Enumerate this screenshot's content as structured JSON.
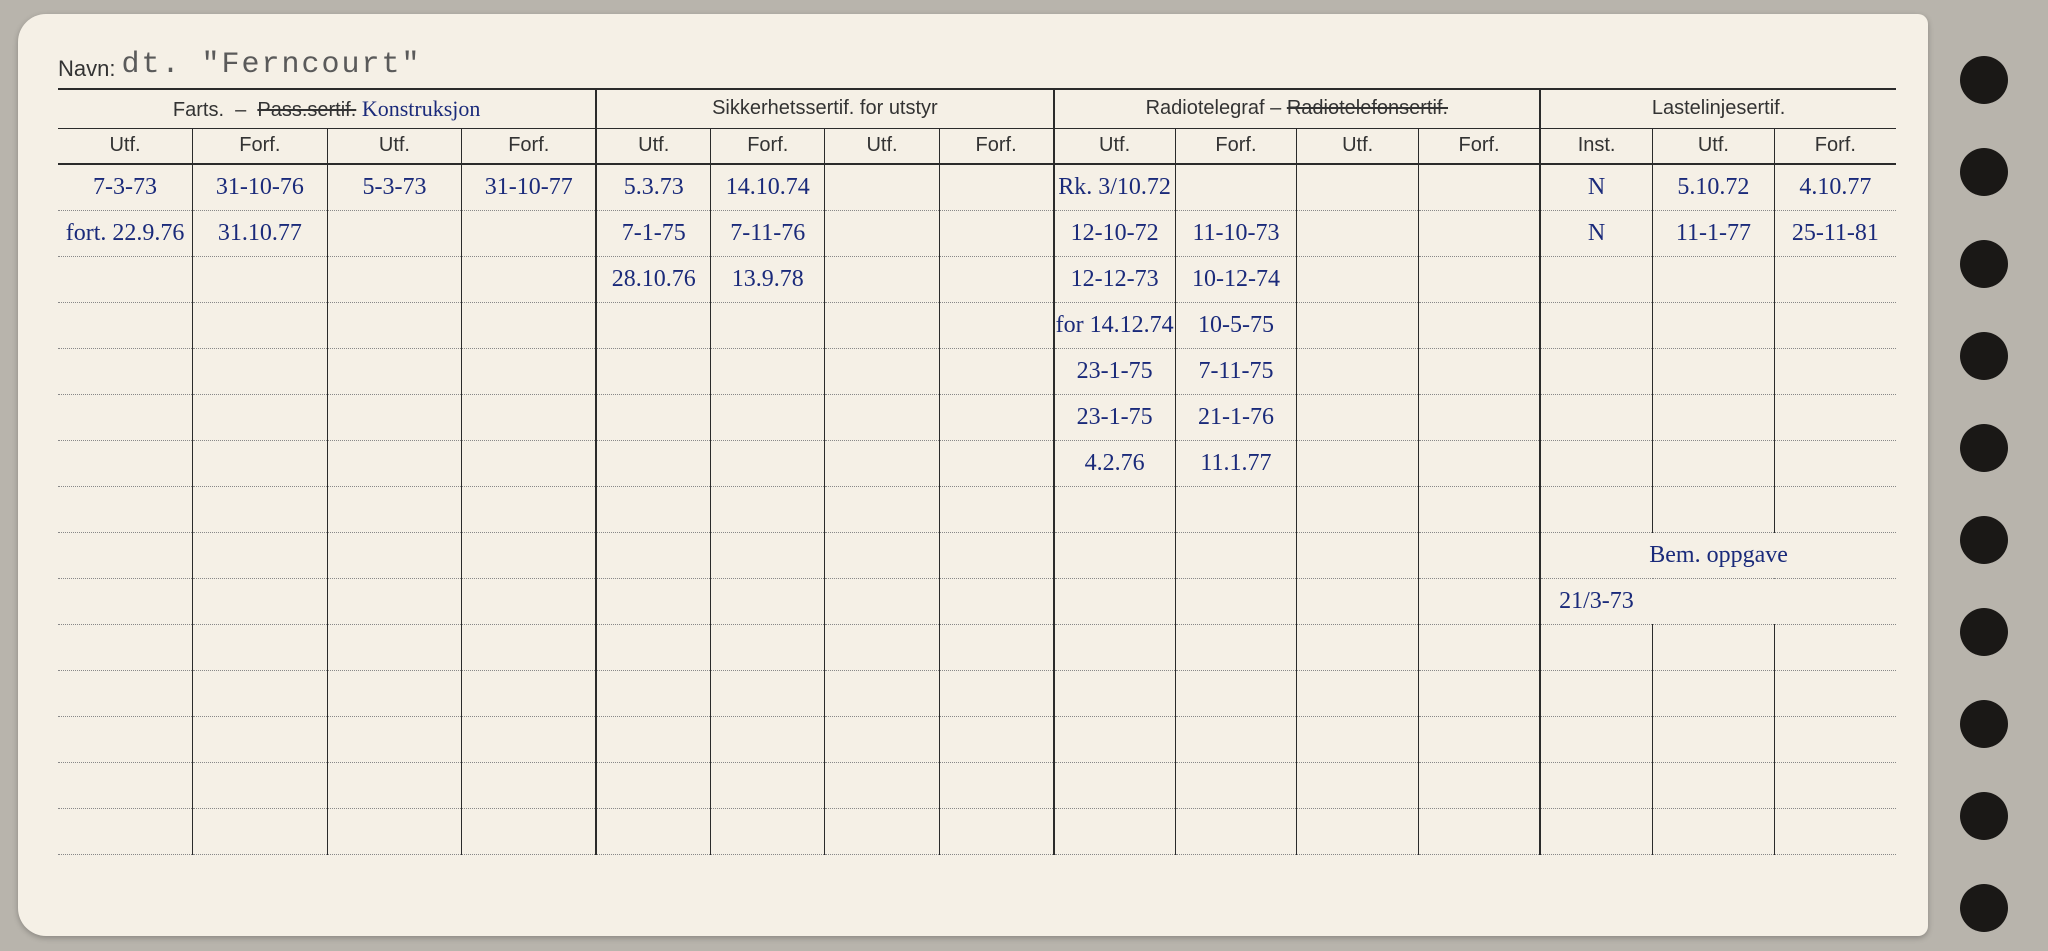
{
  "page_bg": "#f5f0e6",
  "ink_color": "#1a2a7a",
  "print_color": "#2b2b2b",
  "header": {
    "navn_label": "Navn:",
    "navn_value": "dt.  \"Ferncourt\""
  },
  "sections": {
    "farts": {
      "title": "Farts.  –  Pass.sertif.",
      "annot": "Konstruksjon"
    },
    "sikkerhet": {
      "title": "Sikkerhetssertif. for utstyr"
    },
    "radio": {
      "title": "Radiotelegraf – Radiotelefonsertif."
    },
    "laste": {
      "title": "Lastelinjesertif."
    },
    "bem": {
      "title": "Bem. oppgave"
    }
  },
  "subheads": {
    "utf": "Utf.",
    "forf": "Forf.",
    "inst": "Inst."
  },
  "rows": [
    {
      "f1u": "7-3-73",
      "f1f": "31-10-76",
      "f2u": "5-3-73",
      "f2f": "31-10-77",
      "s1u": "5.3.73",
      "s1f": "14.10.74",
      "s2u": "",
      "s2f": "",
      "r1u": "Rk. 3/10.72",
      "r1f": "",
      "r2u": "",
      "r2f": "",
      "li": "N",
      "lu": "5.10.72",
      "lf": "4.10.77"
    },
    {
      "f1u": "fort. 22.9.76",
      "f1f": "31.10.77",
      "f2u": "",
      "f2f": "",
      "s1u": "7-1-75",
      "s1f": "7-11-76",
      "s2u": "",
      "s2f": "",
      "r1u": "12-10-72",
      "r1f": "11-10-73",
      "r2u": "",
      "r2f": "",
      "li": "N",
      "lu": "11-1-77",
      "lf": "25-11-81"
    },
    {
      "f1u": "",
      "f1f": "",
      "f2u": "",
      "f2f": "",
      "s1u": "28.10.76",
      "s1f": "13.9.78",
      "s2u": "",
      "s2f": "",
      "r1u": "12-12-73",
      "r1f": "10-12-74",
      "r2u": "",
      "r2f": "",
      "li": "",
      "lu": "",
      "lf": ""
    },
    {
      "f1u": "",
      "f1f": "",
      "f2u": "",
      "f2f": "",
      "s1u": "",
      "s1f": "",
      "s2u": "",
      "s2f": "",
      "r1u": "for 14.12.74",
      "r1f": "10-5-75",
      "r2u": "",
      "r2f": "",
      "li": "",
      "lu": "",
      "lf": ""
    },
    {
      "f1u": "",
      "f1f": "",
      "f2u": "",
      "f2f": "",
      "s1u": "",
      "s1f": "",
      "s2u": "",
      "s2f": "",
      "r1u": "23-1-75",
      "r1f": "7-11-75",
      "r2u": "",
      "r2f": "",
      "li": "",
      "lu": "",
      "lf": ""
    },
    {
      "f1u": "",
      "f1f": "",
      "f2u": "",
      "f2f": "",
      "s1u": "",
      "s1f": "",
      "s2u": "",
      "s2f": "",
      "r1u": "23-1-75",
      "r1f": "21-1-76",
      "r2u": "",
      "r2f": "",
      "li": "",
      "lu": "",
      "lf": ""
    },
    {
      "f1u": "",
      "f1f": "",
      "f2u": "",
      "f2f": "",
      "s1u": "",
      "s1f": "",
      "s2u": "",
      "s2f": "",
      "r1u": "4.2.76",
      "r1f": "11.1.77",
      "r2u": "",
      "r2f": "",
      "li": "",
      "lu": "",
      "lf": ""
    }
  ],
  "bem_value": "21/3-73",
  "blank_rows_before_bem": 1,
  "blank_rows_after_bem": 5,
  "holes": [
    56,
    148,
    240,
    332,
    424,
    516,
    608,
    700,
    792,
    884
  ],
  "col_widths_pct": [
    7.3,
    7.3,
    7.3,
    7.3,
    6.2,
    6.2,
    6.2,
    6.2,
    6.6,
    6.6,
    6.6,
    6.6,
    6.1,
    6.6,
    6.6
  ]
}
